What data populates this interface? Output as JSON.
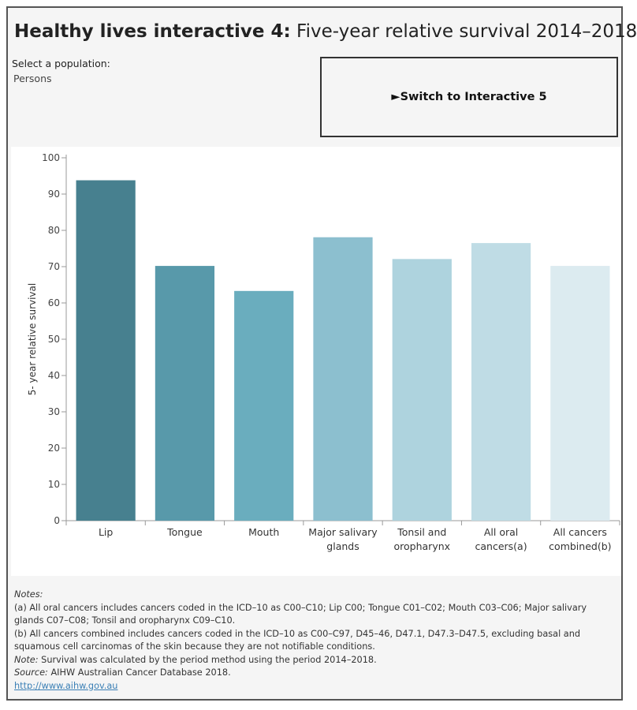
{
  "header": {
    "title_bold": "Healthy lives interactive 4:",
    "title_rest": " Five-year relative survival 2014–2018"
  },
  "population": {
    "label": "Select a population:",
    "value": "Persons"
  },
  "switch_button": {
    "label": "►Switch to Interactive 5"
  },
  "chart_data": {
    "type": "bar",
    "ylabel": "5- year relative survival",
    "ylim": [
      0,
      100
    ],
    "yticks": [
      0,
      10,
      20,
      30,
      40,
      50,
      60,
      70,
      80,
      90,
      100
    ],
    "categories": [
      [
        "Lip"
      ],
      [
        "Tongue"
      ],
      [
        "Mouth"
      ],
      [
        "Major salivary",
        "glands"
      ],
      [
        "Tonsil and",
        "oropharynx"
      ],
      [
        "All oral",
        "cancers(a)"
      ],
      [
        "All cancers",
        "combined(b)"
      ]
    ],
    "values": [
      93.8,
      70.2,
      63.3,
      78.1,
      72.1,
      76.5,
      70.2
    ],
    "colors": [
      "#47808f",
      "#5899aa",
      "#6aadbe",
      "#8cbfcf",
      "#aed3de",
      "#bfdce5",
      "#dcebf0"
    ]
  },
  "notes": {
    "heading": "Notes:",
    "a": "(a) All oral cancers includes cancers coded in the ICD–10 as C00–C10; Lip C00; Tongue C01–C02; Mouth C03–C06; Major salivary glands C07–C08; Tonsil and oropharynx C09–C10.",
    "b": "(b) All cancers combined includes cancers coded in the ICD–10 as C00–C97, D45–46, D47.1, D47.3–D47.5, excluding basal and squamous cell carcinomas of the skin because they are not notifiable conditions.",
    "note_label": "Note:",
    "note_text": " Survival was calculated by the period method using the period 2014–2018.",
    "source_label": "Source:",
    "source_text": " AIHW Australian Cancer Database 2018.",
    "link": "http://www.aihw.gov.au"
  }
}
